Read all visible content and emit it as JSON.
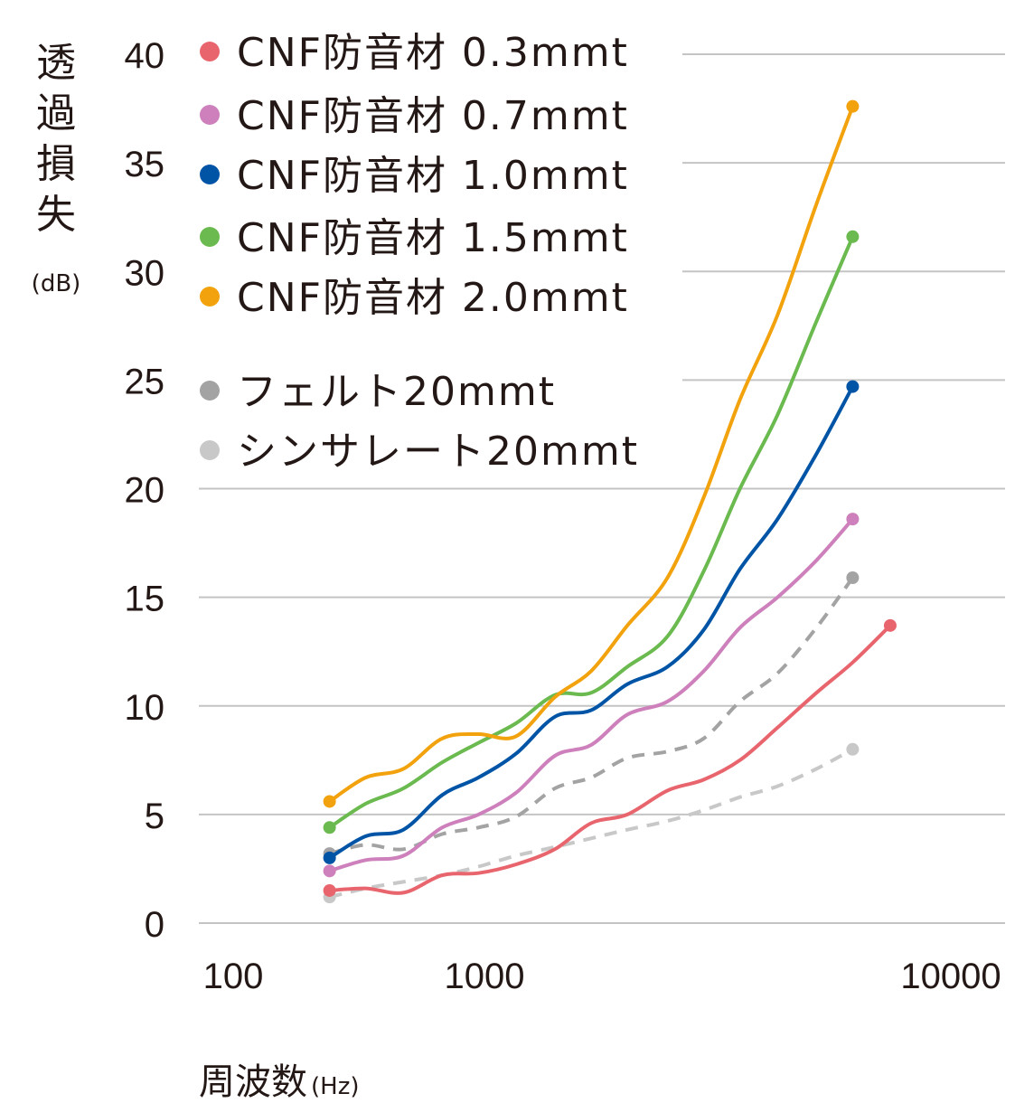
{
  "chart_data": {
    "type": "line",
    "ylabel_chars": [
      "透",
      "過",
      "損",
      "失"
    ],
    "ylabel_unit": "(dB)",
    "xlabel": "周波数",
    "xlabel_unit": "(Hz)",
    "x_scale": "log",
    "xlim": [
      100,
      10000
    ],
    "ylim": [
      0,
      40
    ],
    "x_ticks": [
      100,
      1000,
      10000
    ],
    "x_tick_labels": [
      "100",
      "1000",
      "10000"
    ],
    "y_ticks": [
      0,
      5,
      10,
      15,
      20,
      25,
      30,
      35,
      40
    ],
    "y_tick_labels": [
      "0",
      "5",
      "10",
      "15",
      "20",
      "25",
      "30",
      "35",
      "40"
    ],
    "grid": "horizontal",
    "legend_position": "top-left",
    "series": [
      {
        "name": "CNF防音材 0.3mmt",
        "color": "#e8656e",
        "dash": false,
        "x": [
          200,
          250,
          315,
          400,
          500,
          630,
          800,
          1000,
          1250,
          1600,
          2000,
          2500,
          3150,
          4000,
          5000,
          6300,
          8000,
          10000
        ],
        "y": [
          1.5,
          1.6,
          1.4,
          2.2,
          2.3,
          2.7,
          3.4,
          4.6,
          5.0,
          6.1,
          6.6,
          7.5,
          9.0,
          10.6,
          12.0,
          13.7,
          null,
          null
        ]
      },
      {
        "name": "CNF防音材 0.7mmt",
        "color": "#cd80bb",
        "dash": false,
        "x": [
          200,
          250,
          315,
          400,
          500,
          630,
          800,
          1000,
          1250,
          1600,
          2000,
          2500,
          3150,
          4000,
          5000,
          6300,
          8000,
          10000
        ],
        "y": [
          2.4,
          2.9,
          3.1,
          4.4,
          5.0,
          6.0,
          7.7,
          8.2,
          9.6,
          10.2,
          11.6,
          13.6,
          15.0,
          16.7,
          18.6,
          null,
          null,
          null
        ]
      },
      {
        "name": "CNF防音材 1.0mmt",
        "color": "#0054a6",
        "dash": false,
        "x": [
          200,
          250,
          315,
          400,
          500,
          630,
          800,
          1000,
          1250,
          1600,
          2000,
          2500,
          3150,
          4000,
          5000,
          6300,
          8000,
          10000
        ],
        "y": [
          3.0,
          4.0,
          4.3,
          5.9,
          6.7,
          7.8,
          9.5,
          9.8,
          11.0,
          11.8,
          13.5,
          16.3,
          18.6,
          21.6,
          24.7,
          null,
          null,
          null
        ]
      },
      {
        "name": "CNF防音材 1.5mmt",
        "color": "#6bba4f",
        "dash": false,
        "x": [
          200,
          250,
          315,
          400,
          500,
          630,
          800,
          1000,
          1250,
          1600,
          2000,
          2500,
          3150,
          4000,
          5000,
          6300,
          8000,
          10000
        ],
        "y": [
          4.4,
          5.5,
          6.2,
          7.4,
          8.3,
          9.2,
          10.5,
          10.6,
          11.8,
          13.2,
          16.2,
          20.0,
          23.4,
          27.7,
          31.6,
          null,
          null,
          null
        ]
      },
      {
        "name": "CNF防音材 2.0mmt",
        "color": "#f2a20d",
        "dash": false,
        "x": [
          200,
          250,
          315,
          400,
          500,
          630,
          800,
          1000,
          1250,
          1600,
          2000,
          2500,
          3150,
          4000,
          5000,
          6300,
          8000,
          10000
        ],
        "y": [
          5.6,
          6.7,
          7.1,
          8.5,
          8.7,
          8.6,
          10.4,
          11.6,
          13.7,
          15.9,
          19.6,
          24.1,
          28.0,
          33.1,
          37.6,
          null,
          null,
          null
        ]
      },
      {
        "name": "フェルト20mmt",
        "color": "#a3a3a3",
        "dash": true,
        "x": [
          200,
          250,
          315,
          400,
          500,
          630,
          800,
          1000,
          1250,
          1600,
          2000,
          2500,
          3150,
          4000,
          5000,
          6300,
          8000,
          10000
        ],
        "y": [
          3.2,
          3.6,
          3.4,
          4.1,
          4.4,
          4.9,
          6.2,
          6.7,
          7.6,
          7.9,
          8.5,
          10.2,
          11.5,
          13.6,
          15.9,
          null,
          null,
          null
        ]
      },
      {
        "name": "シンサレート20mmt",
        "color": "#c8c8c8",
        "dash": true,
        "x": [
          200,
          250,
          315,
          400,
          500,
          630,
          800,
          1000,
          1250,
          1600,
          2000,
          2500,
          3150,
          4000,
          5000,
          6300,
          8000,
          10000
        ],
        "y": [
          1.2,
          1.6,
          1.9,
          2.2,
          2.6,
          3.1,
          3.5,
          3.9,
          4.3,
          4.7,
          5.2,
          5.8,
          6.3,
          7.1,
          8.0,
          null,
          null,
          null
        ]
      }
    ]
  }
}
